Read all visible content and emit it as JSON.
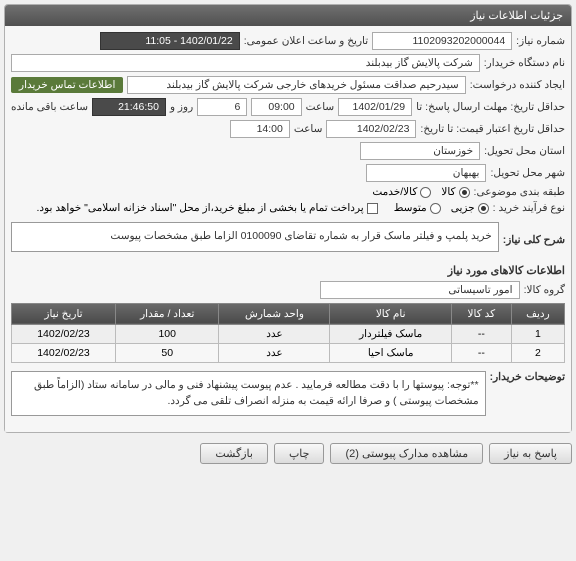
{
  "panel": {
    "title": "جزئیات اطلاعات نیاز"
  },
  "fields": {
    "need_no_label": "شماره نیاز:",
    "need_no": "1102093202000044",
    "announce_label": "تاریخ و ساعت اعلان عمومی:",
    "announce_value": "1402/01/22 - 11:05",
    "buyer_label": "نام دستگاه خریدار:",
    "buyer_value": "شرکت پالایش گاز بیدبلند",
    "creator_label": "ایجاد کننده درخواست:",
    "creator_value": "سیدرحیم صداقت مسئول خریدهای خارجی شرکت پالایش گاز بیدبلند",
    "contact_link": "اطلاعات تماس خریدار",
    "deadline_label": "حداقل تاریخ: مهلت ارسال پاسخ: تا",
    "deadline_date": "1402/01/29",
    "saat": "ساعت",
    "deadline_time": "09:00",
    "days": "6",
    "rooz_va": "روز و",
    "remaining_time": "21:46:50",
    "remaining_suffix": "ساعت باقی مانده",
    "validity_label": "حداقل تاریخ اعتبار قیمت: تا تاریخ:",
    "validity_date": "1402/02/23",
    "validity_time": "14:00",
    "province_label": "استان محل تحویل:",
    "province_value": "خوزستان",
    "city_label": "شهر محل تحویل:",
    "city_value": "بهبهان",
    "category_label": "طبقه بندی موضوعی:",
    "cat_kala": "کالا",
    "cat_khadamat": "کالا/خدمت",
    "process_label": "نوع فرآیند خرید :",
    "proc_jozei": "جزیی",
    "proc_motevasset": "متوسط",
    "payment_note": "پرداخت تمام یا بخشی از مبلغ خرید،از محل \"اسناد خزانه اسلامی\" خواهد بود."
  },
  "summary": {
    "label": "شرح کلی نیاز:",
    "text": "خرید پلمپ  و فیلتر ماسک قرار به شماره تقاضای 0100090 الزاما طبق مشخصات پیوست"
  },
  "items_section": {
    "title": "اطلاعات کالاهای مورد نیاز",
    "group_label": "گروه کالا:",
    "group_value": "امور تاسیساتی"
  },
  "table": {
    "headers": [
      "ردیف",
      "کد کالا",
      "نام کالا",
      "واحد شمارش",
      "تعداد / مقدار",
      "تاریخ نیاز"
    ],
    "rows": [
      [
        "1",
        "--",
        "ماسک فیلتردار",
        "عدد",
        "100",
        "1402/02/23"
      ],
      [
        "2",
        "--",
        "ماسک احیا",
        "عدد",
        "50",
        "1402/02/23"
      ]
    ]
  },
  "notes": {
    "label": "توضیحات خریدار:",
    "text": "**توجه: پیوستها را با دقت مطالعه فرمایید . عدم پیوست پیشنهاد فنی و مالی در سامانه ستاد (الزاماً طبق مشخصات پیوستی ) و صرفا ارائه قیمت به منزله انصراف تلقی می گردد."
  },
  "buttons": {
    "respond": "پاسخ به نیاز",
    "attachments": "مشاهده مدارک پیوستی (2)",
    "print": "چاپ",
    "back": "بازگشت"
  },
  "watermark": "۰۱۰۰۰۹۰"
}
